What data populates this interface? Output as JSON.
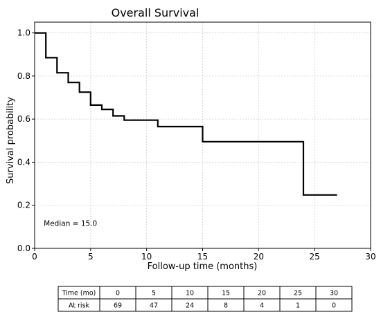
{
  "chart_data": {
    "type": "line",
    "step": true,
    "title": "Overall Survival",
    "xlabel": "Follow-up time (months)",
    "ylabel": "Survival probability",
    "xlim": [
      0,
      30
    ],
    "ylim": [
      0,
      1.05
    ],
    "xticks": [
      0,
      5,
      10,
      15,
      20,
      25,
      30
    ],
    "yticks": [
      "0.0",
      "0.2",
      "0.4",
      "0.6",
      "0.8",
      "1.0"
    ],
    "grid": true,
    "series": [
      {
        "x": [
          0,
          1,
          2,
          3,
          4,
          5,
          6,
          7,
          8,
          11,
          15,
          24,
          27
        ],
        "y": [
          1.0,
          0.885,
          0.815,
          0.77,
          0.725,
          0.665,
          0.645,
          0.615,
          0.595,
          0.565,
          0.495,
          0.248,
          0.248
        ]
      }
    ],
    "annotations": [
      {
        "text": "Median = 15.0",
        "x": 1,
        "y": 0.105
      }
    ],
    "risk_table": {
      "header_label": "Time (mo)",
      "row_label": "At risk",
      "times": [
        0,
        5,
        10,
        15,
        20,
        25,
        30
      ],
      "at_risk": [
        69,
        47,
        24,
        8,
        4,
        1,
        0
      ]
    }
  },
  "colors": {
    "line": "#000000",
    "grid": "#cccccc",
    "axes": "#000000"
  }
}
